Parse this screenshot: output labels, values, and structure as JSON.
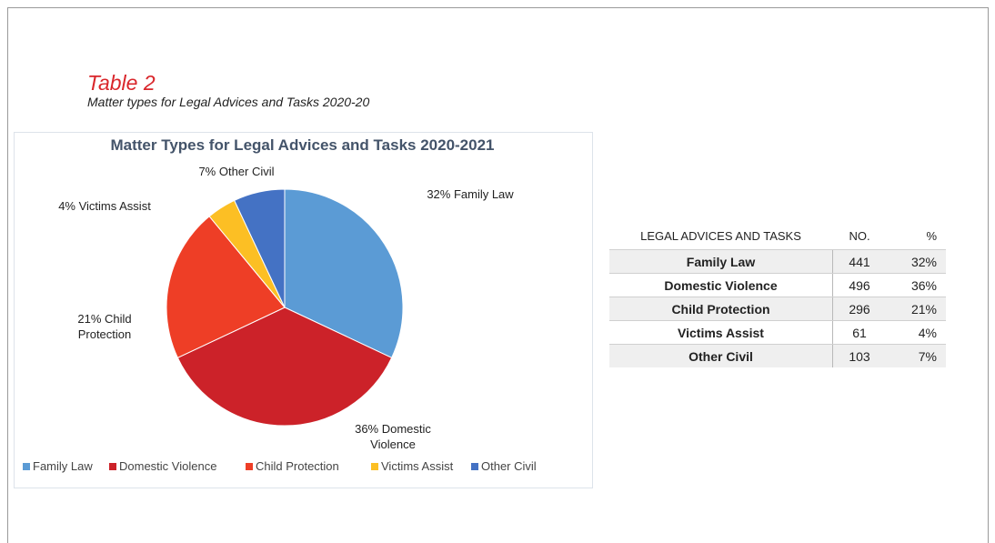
{
  "header": {
    "title": "Table 2",
    "subtitle": "Matter types for Legal Advices and Tasks 2020-20"
  },
  "chart_data": {
    "type": "pie",
    "title": "Matter Types for Legal Advices and Tasks 2020-2021",
    "categories": [
      "Family Law",
      "Domestic Violence",
      "Child Protection",
      "Victims Assist",
      "Other Civil"
    ],
    "values": [
      32,
      36,
      21,
      4,
      7
    ],
    "value_labels": [
      "32% Family Law",
      "36% Domestic Violence",
      "21% Child Protection",
      "4% Victims Assist",
      "7% Other Civil"
    ],
    "colors": [
      "#5b9bd5",
      "#cc2229",
      "#ee3e26",
      "#fcbf24",
      "#4472c4"
    ],
    "legend": "bottom"
  },
  "table": {
    "columns": [
      "LEGAL ADVICES AND TASKS",
      "NO.",
      "%"
    ],
    "rows": [
      [
        "Family Law",
        441,
        "32%"
      ],
      [
        "Domestic Violence",
        496,
        "36%"
      ],
      [
        "Child Protection",
        296,
        "21%"
      ],
      [
        "Victims Assist",
        61,
        "4%"
      ],
      [
        "Other Civil",
        103,
        "7%"
      ]
    ]
  }
}
